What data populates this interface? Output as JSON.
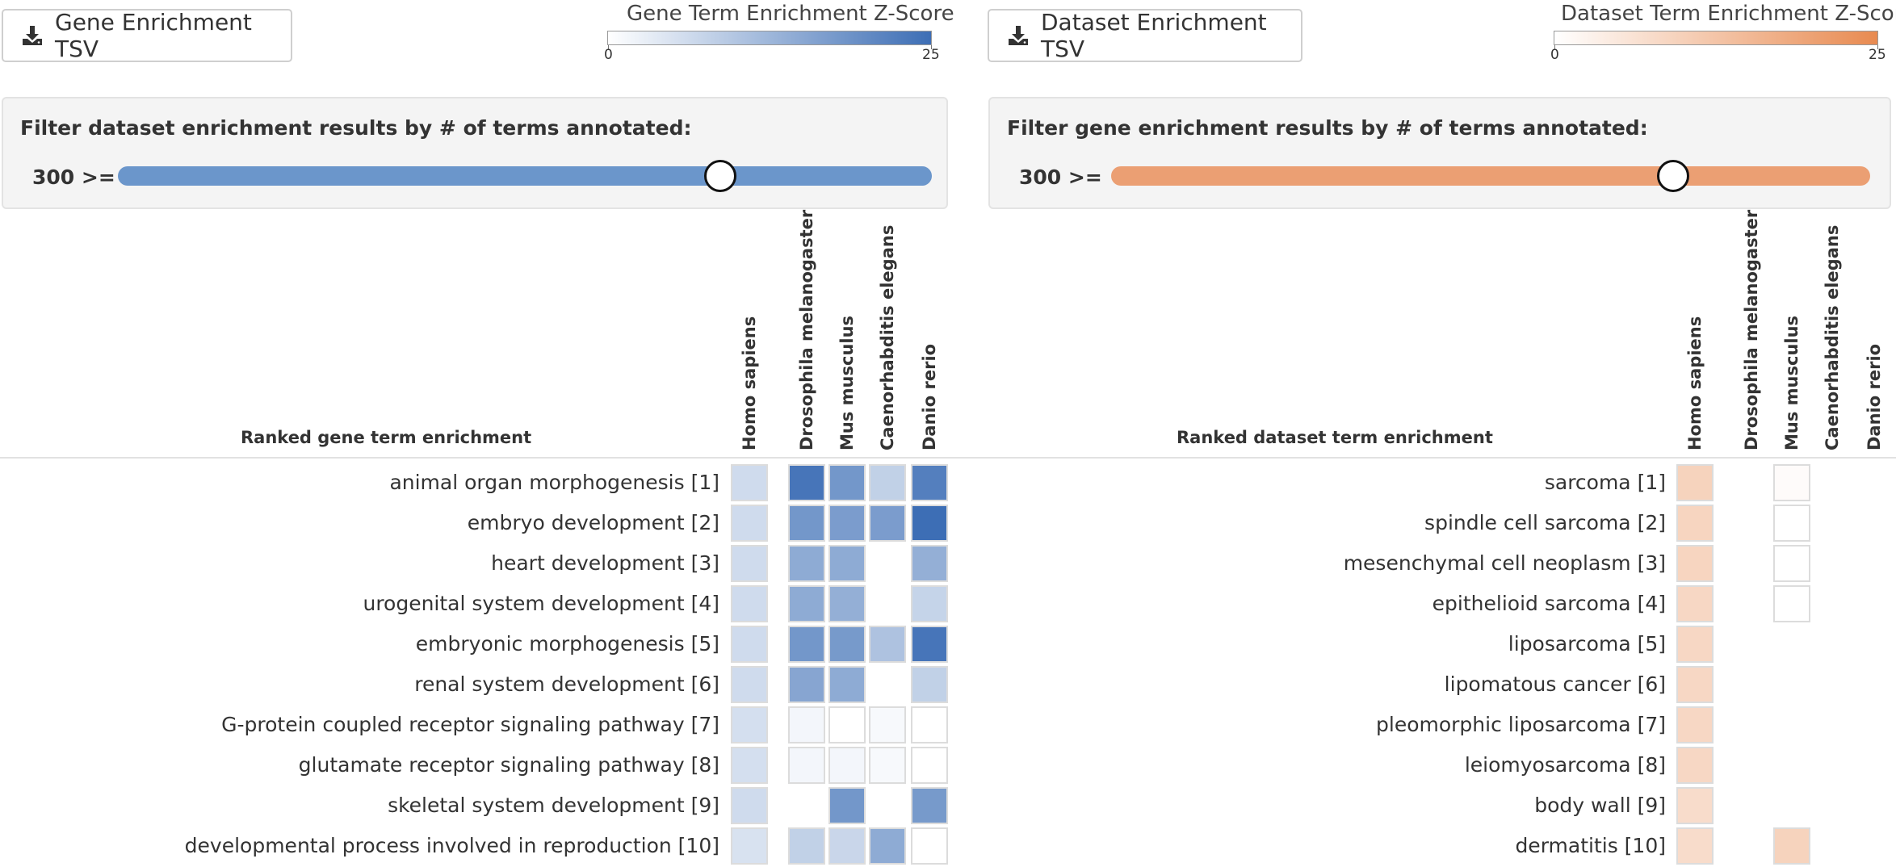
{
  "left": {
    "download_label": "Gene Enrichment TSV",
    "download_icon": "download-icon",
    "legend": {
      "title": "Gene Term Enrichment Z-Score",
      "min": "0",
      "max": "25",
      "color_low": "#ffffff",
      "color_high": "#3d6eb5"
    },
    "filter": {
      "title": "Filter dataset enrichment results by # of terms annotated:",
      "value_label": "300 >=",
      "slider_fraction": 0.74,
      "track_color": "#6b96cb"
    },
    "table": {
      "title": "Ranked gene term enrichment",
      "columns": [
        "Homo sapiens",
        "Drosophila melanogaster",
        "Mus musculus",
        "Caenorhabditis elegans",
        "Danio rerio"
      ],
      "rows": [
        "animal organ morphogenesis [1]",
        "embryo development [2]",
        "heart development [3]",
        "urogenital system development [4]",
        "embryonic morphogenesis [5]",
        "renal system development [6]",
        "G-protein coupled receptor signaling pathway [7]",
        "glutamate receptor signaling pathway [8]",
        "skeletal system development [9]",
        "developmental process involved in reproduction [10]"
      ],
      "zscore_fractions": [
        [
          0.25,
          0.95,
          0.72,
          0.32,
          0.88
        ],
        [
          0.25,
          0.72,
          0.68,
          0.68,
          1.0
        ],
        [
          0.25,
          0.58,
          0.58,
          null,
          0.55
        ],
        [
          0.25,
          0.58,
          0.55,
          null,
          0.3
        ],
        [
          0.25,
          0.72,
          0.7,
          0.42,
          0.95
        ],
        [
          0.25,
          0.62,
          0.58,
          null,
          0.32
        ],
        [
          0.22,
          0.06,
          0.0,
          0.04,
          0.0
        ],
        [
          0.22,
          0.06,
          0.06,
          0.04,
          0.0
        ],
        [
          0.25,
          null,
          0.72,
          null,
          0.7
        ],
        [
          0.2,
          0.32,
          0.28,
          0.58,
          0.0
        ]
      ]
    }
  },
  "right": {
    "download_label": "Dataset Enrichment TSV",
    "download_icon": "download-icon",
    "legend": {
      "title": "Dataset Term Enrichment Z-Score",
      "min": "0",
      "max": "25",
      "color_low": "#ffffff",
      "color_high": "#e88a50"
    },
    "filter": {
      "title": "Filter gene enrichment results by # of terms annotated:",
      "value_label": "300 >=",
      "slider_fraction": 0.74,
      "track_color": "#eb9f73"
    },
    "table": {
      "title": "Ranked dataset term enrichment",
      "columns": [
        "Homo sapiens",
        "Drosophila melanogaster",
        "Mus musculus",
        "Caenorhabditis elegans",
        "Danio rerio"
      ],
      "rows": [
        "sarcoma [1]",
        "spindle cell sarcoma [2]",
        "mesenchymal cell neoplasm [3]",
        "epithelioid sarcoma [4]",
        "liposarcoma [5]",
        "lipomatous cancer [6]",
        "pleomorphic liposarcoma [7]",
        "leiomyosarcoma [8]",
        "body wall [9]",
        "dermatitis [10]"
      ],
      "zscore_fractions": [
        [
          0.38,
          null,
          0.03,
          null,
          null
        ],
        [
          0.36,
          null,
          0.0,
          null,
          null
        ],
        [
          0.36,
          null,
          0.0,
          null,
          null
        ],
        [
          0.34,
          null,
          0.0,
          null,
          null
        ],
        [
          0.34,
          null,
          null,
          null,
          null
        ],
        [
          0.34,
          null,
          null,
          null,
          null
        ],
        [
          0.34,
          null,
          null,
          null,
          null
        ],
        [
          0.34,
          null,
          null,
          null,
          null
        ],
        [
          0.3,
          null,
          null,
          null,
          null
        ],
        [
          0.3,
          null,
          0.38,
          null,
          null
        ]
      ]
    }
  }
}
